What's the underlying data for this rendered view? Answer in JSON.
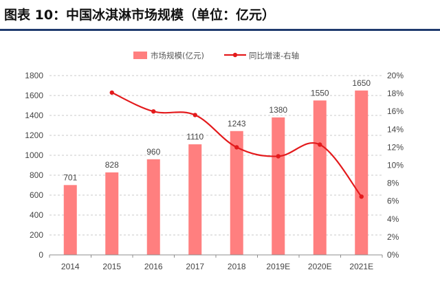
{
  "figure": {
    "title": "图表 10：中国冰淇淋市场规模（单位：亿元）",
    "accent_color": "#1f3a6e"
  },
  "chart_data": {
    "type": "bar",
    "categories": [
      "2014",
      "2015",
      "2016",
      "2017",
      "2018",
      "2019E",
      "2020E",
      "2021E"
    ],
    "series": [
      {
        "name": "市场规模(亿元)",
        "type": "bar",
        "axis": "left",
        "color": "#ff7f7f",
        "values": [
          701,
          828,
          960,
          1110,
          1243,
          1380,
          1550,
          1650
        ]
      },
      {
        "name": "同比增速-右轴",
        "type": "line",
        "axis": "right",
        "color": "#e31a1c",
        "smooth": true,
        "values": [
          null,
          18.1,
          16.0,
          15.6,
          12.0,
          11.0,
          12.3,
          6.5
        ]
      }
    ],
    "ylim_left": [
      0,
      1800
    ],
    "yticks_left": [
      "0",
      "200",
      "400",
      "600",
      "800",
      "1000",
      "1200",
      "1400",
      "1600",
      "1800"
    ],
    "ylim_right": [
      0,
      20
    ],
    "yticks_right": [
      "0%",
      "2%",
      "4%",
      "6%",
      "8%",
      "10%",
      "12%",
      "14%",
      "16%",
      "18%",
      "20%"
    ],
    "grid": "horizontal-dashed",
    "legend": "top-center"
  }
}
